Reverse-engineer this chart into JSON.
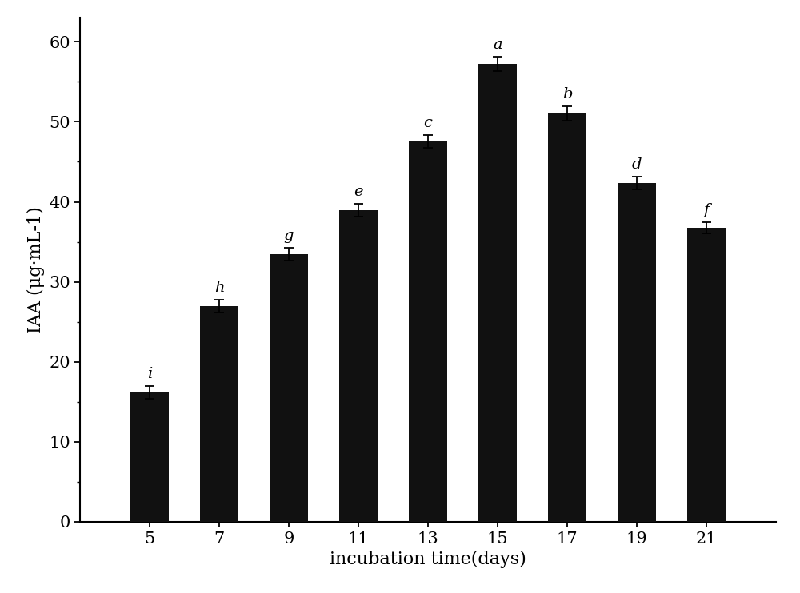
{
  "categories": [
    5,
    7,
    9,
    11,
    13,
    15,
    17,
    19,
    21
  ],
  "values": [
    16.2,
    27.0,
    33.5,
    39.0,
    47.5,
    57.2,
    51.0,
    42.3,
    36.8
  ],
  "errors": [
    0.8,
    0.8,
    0.8,
    0.8,
    0.8,
    0.9,
    0.9,
    0.8,
    0.7
  ],
  "sig_labels": [
    "i",
    "h",
    "g",
    "e",
    "c",
    "a",
    "b",
    "d",
    "f"
  ],
  "bar_color": "#111111",
  "xlabel": "incubation time(days)",
  "ylabel": "IAA (μg·mL-1)",
  "ylim": [
    0,
    63
  ],
  "yticks": [
    0,
    10,
    20,
    30,
    40,
    50,
    60
  ],
  "xlabel_fontsize": 16,
  "ylabel_fontsize": 16,
  "tick_fontsize": 15,
  "sig_fontsize": 14,
  "bar_width": 1.1,
  "capsize": 4,
  "elinewidth": 1.3,
  "ecapthick": 1.3,
  "xlim": [
    3.0,
    23.0
  ]
}
